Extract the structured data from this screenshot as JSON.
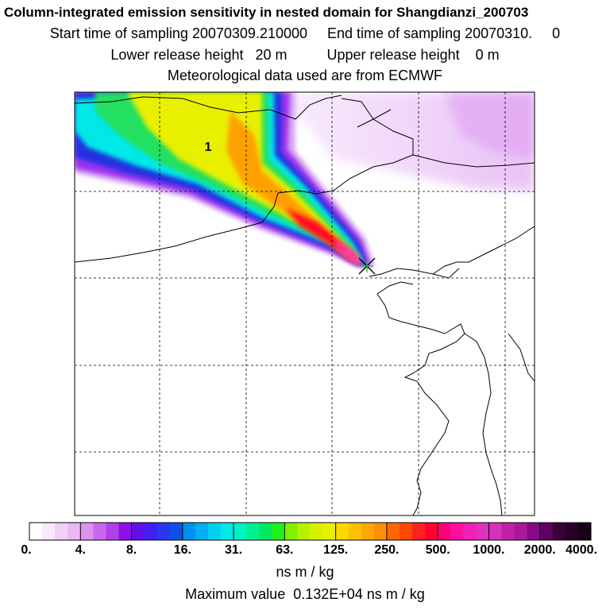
{
  "header": {
    "title": "Column-integrated emission sensitivity in nested domain for Shangdianzi_200703",
    "sampling_line": "Start time of sampling 20070309.210000     End time of sampling 20070310.     0",
    "release_line": "Lower release height   20 m          Upper release height    0 m",
    "met_line": "Meteorological data used are from ECMWF"
  },
  "map": {
    "region_label": "1",
    "marker_icon": "x-marker-icon",
    "plume_colors": {
      "edge": "#d8a8f0",
      "violet": "#9b30f0",
      "blue": "#2030e0",
      "cyan": "#00e8e8",
      "green": "#20e060",
      "yellow": "#e8f000",
      "orange": "#ffa000",
      "red": "#ff1020",
      "magenta": "#ff40a0"
    }
  },
  "legend": {
    "ticks": [
      "0.",
      "4.",
      "8.",
      "16.",
      "31.",
      "63.",
      "125.",
      "250.",
      "500.",
      "1000.",
      "2000.",
      "4000."
    ],
    "colors": [
      "#ffffff",
      "#fbe8fb",
      "#f4d0f8",
      "#eab8f6",
      "#dc90f0",
      "#c868ec",
      "#b040e8",
      "#9010e8",
      "#6010e8",
      "#4020f0",
      "#2838f0",
      "#1050e8",
      "#0090f0",
      "#00b0f0",
      "#00d0f0",
      "#00e8e8",
      "#00f0c8",
      "#00f090",
      "#00e860",
      "#20f020",
      "#80f000",
      "#b8f000",
      "#d8f000",
      "#e8f000",
      "#ffd800",
      "#ffc000",
      "#ffa800",
      "#ff9000",
      "#ff6800",
      "#ff4800",
      "#ff2020",
      "#ff0030",
      "#ff0078",
      "#ff10a0",
      "#f020b8",
      "#e030c0",
      "#d830b8",
      "#c020a8",
      "#a81898",
      "#880888",
      "#600060",
      "#3c0038",
      "#280028",
      "#180018"
    ],
    "unit": "ns m / kg",
    "max_value_line": "Maximum value  0.132E+04 ns m / kg"
  }
}
